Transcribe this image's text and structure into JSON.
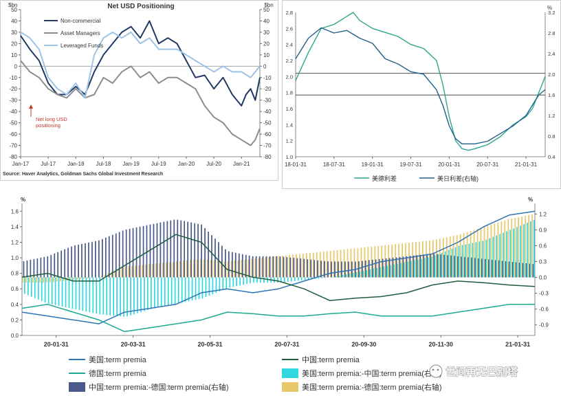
{
  "chart_data": [
    {
      "type": "line",
      "title": "Net USD Positioning",
      "left_unit": "$bn",
      "right_unit": "$bn",
      "ylim": [
        -80,
        50
      ],
      "y_ticks": [
        50,
        40,
        30,
        20,
        10,
        0,
        -10,
        -20,
        -30,
        -40,
        -50,
        -60,
        -70,
        -80
      ],
      "x_ticks": [
        "Jan-17",
        "Jul-17",
        "Jan-18",
        "Jul-18",
        "Jan-19",
        "Jul-19",
        "Jan-20",
        "Jul-20",
        "Jan-21"
      ],
      "xlim": [
        0,
        52
      ],
      "x_tick_positions": [
        0,
        6,
        12,
        18,
        24,
        30,
        36,
        42,
        48
      ],
      "annotation": "Net long USD positioning",
      "source": "Source: Haver Analytics, Goldman Sachs Global Investment Research",
      "grid": false,
      "legend_position": "top-left",
      "series": [
        {
          "name": "Non-commercial",
          "color": "#1f3864",
          "width": 2,
          "x": [
            0,
            2,
            4,
            6,
            8,
            10,
            12,
            14,
            16,
            18,
            20,
            22,
            24,
            26,
            28,
            30,
            32,
            34,
            36,
            38,
            40,
            42,
            44,
            46,
            47,
            48,
            49,
            50,
            51,
            52
          ],
          "values": [
            27,
            15,
            5,
            -15,
            -25,
            -25,
            -18,
            -25,
            -5,
            10,
            20,
            30,
            35,
            25,
            40,
            20,
            25,
            20,
            5,
            -10,
            -8,
            -20,
            -10,
            -25,
            -30,
            -35,
            -25,
            -20,
            -30,
            -10
          ]
        },
        {
          "name": "Asset Managers",
          "color": "#8c8c8c",
          "width": 2,
          "x": [
            0,
            2,
            4,
            6,
            8,
            10,
            12,
            14,
            16,
            18,
            20,
            22,
            24,
            26,
            28,
            30,
            32,
            34,
            36,
            38,
            40,
            42,
            44,
            46,
            48,
            50,
            51,
            52
          ],
          "values": [
            5,
            -5,
            -10,
            -20,
            -25,
            -28,
            -20,
            -28,
            -25,
            -10,
            -15,
            -5,
            0,
            -10,
            -5,
            -15,
            -10,
            -10,
            -15,
            -20,
            -35,
            -45,
            -50,
            -60,
            -65,
            -70,
            -65,
            -55
          ]
        },
        {
          "name": "Leveraged Funds",
          "color": "#9dc3e6",
          "width": 2,
          "x": [
            0,
            2,
            4,
            6,
            8,
            10,
            12,
            14,
            16,
            18,
            20,
            22,
            24,
            26,
            28,
            30,
            32,
            34,
            36,
            38,
            40,
            42,
            44,
            46,
            48,
            50,
            52
          ],
          "values": [
            30,
            25,
            15,
            -10,
            -20,
            -25,
            -15,
            -28,
            10,
            25,
            30,
            25,
            30,
            20,
            25,
            15,
            15,
            15,
            10,
            5,
            0,
            -5,
            0,
            -5,
            -5,
            -10,
            0
          ]
        }
      ]
    },
    {
      "type": "line",
      "right_unit": "%",
      "ylim_left": [
        1.0,
        2.8
      ],
      "ylim_right": [
        0.4,
        3.2
      ],
      "y_ticks_left": [
        "2.8",
        "2.6",
        "2.4",
        "2.2",
        "2.0",
        "1.8",
        "1.6",
        "1.4",
        "1.2",
        "1.0"
      ],
      "y_ticks_right": [
        "3.2",
        "2.8",
        "2.4",
        "2.0",
        "1.6",
        "1.2",
        "0.8",
        "0.4"
      ],
      "x_ticks": [
        "18-01-31",
        "18-07-31",
        "19-01-31",
        "19-07-31",
        "20-01-31",
        "20-07-31",
        "21-01-31"
      ],
      "xlim": [
        0,
        39
      ],
      "x_tick_positions": [
        0,
        6,
        12,
        18,
        24,
        30,
        36
      ],
      "hlines_left": [
        2.04,
        1.77
      ],
      "series": [
        {
          "name": "美德利差",
          "color": "#2ca58d",
          "axis": "left",
          "x": [
            0,
            2,
            4,
            6,
            8,
            9,
            10,
            12,
            14,
            16,
            18,
            20,
            22,
            23,
            24,
            25,
            26,
            27,
            28,
            30,
            32,
            34,
            36,
            37,
            38,
            39
          ],
          "values": [
            1.95,
            2.3,
            2.6,
            2.65,
            2.75,
            2.8,
            2.7,
            2.6,
            2.55,
            2.5,
            2.4,
            2.35,
            2.2,
            1.9,
            1.5,
            1.2,
            1.1,
            1.08,
            1.1,
            1.15,
            1.25,
            1.4,
            1.5,
            1.6,
            1.8,
            2.0
          ]
        },
        {
          "name": "美日利差(右轴)",
          "color": "#1f5f8b",
          "axis": "right",
          "x": [
            0,
            2,
            4,
            6,
            8,
            10,
            12,
            14,
            16,
            18,
            20,
            22,
            23,
            24,
            25,
            26,
            28,
            30,
            32,
            34,
            36,
            37,
            38,
            39
          ],
          "values": [
            2.3,
            2.7,
            2.9,
            2.8,
            2.85,
            2.7,
            2.6,
            2.3,
            2.2,
            2.05,
            2.0,
            1.7,
            1.4,
            1.0,
            0.75,
            0.65,
            0.65,
            0.7,
            0.85,
            1.0,
            1.2,
            1.4,
            1.6,
            1.7
          ]
        }
      ]
    },
    {
      "type": "bar",
      "left_unit": "%",
      "right_unit": "%",
      "ylim_left": [
        0.0,
        1.7
      ],
      "ylim_right": [
        -1.1,
        1.4
      ],
      "y_ticks_left": [
        "1.6",
        "1.4",
        "1.2",
        "1.0",
        "0.8",
        "0.6",
        "0.4",
        "0.2",
        "0.0"
      ],
      "y_ticks_right": [
        "1.2",
        "0.9",
        "0.6",
        "0.3",
        "0.0",
        "-0.3",
        "-0.6",
        "-0.9"
      ],
      "x_ticks": [
        "20-01-31",
        "20-03-31",
        "20-05-31",
        "20-07-31",
        "20-09-30",
        "20-11-30",
        "21-01-31"
      ],
      "xlim": [
        0,
        60
      ],
      "x_tick_positions": [
        4,
        13,
        22,
        31,
        40,
        49,
        58
      ],
      "watermark": "世间再无巴别塔",
      "series": [
        {
          "name": "美国:term premia",
          "color": "#2e75b6",
          "axis": "left",
          "kind": "line",
          "x": [
            0,
            3,
            6,
            9,
            12,
            15,
            18,
            21,
            24,
            27,
            30,
            33,
            36,
            39,
            42,
            45,
            48,
            51,
            54,
            57,
            60
          ],
          "values": [
            0.3,
            0.25,
            0.2,
            0.15,
            0.3,
            0.35,
            0.4,
            0.55,
            0.6,
            0.55,
            0.6,
            0.7,
            0.8,
            0.85,
            0.95,
            1.0,
            1.05,
            1.2,
            1.4,
            1.55,
            1.6
          ]
        },
        {
          "name": "中国:term premia",
          "color": "#1e5c3a",
          "axis": "left",
          "kind": "line",
          "x": [
            0,
            3,
            6,
            9,
            12,
            15,
            18,
            21,
            24,
            27,
            30,
            33,
            36,
            39,
            42,
            45,
            48,
            51,
            54,
            57,
            60
          ],
          "values": [
            0.75,
            0.8,
            0.7,
            0.7,
            0.9,
            1.1,
            1.3,
            1.2,
            0.85,
            0.75,
            0.7,
            0.6,
            0.45,
            0.48,
            0.5,
            0.55,
            0.65,
            0.7,
            0.68,
            0.65,
            0.63
          ]
        },
        {
          "name": "德国:term premia",
          "color": "#1aaa8f",
          "axis": "left",
          "kind": "line",
          "x": [
            0,
            3,
            6,
            9,
            12,
            15,
            18,
            21,
            24,
            27,
            30,
            33,
            36,
            39,
            42,
            45,
            48,
            51,
            54,
            57,
            60
          ],
          "values": [
            0.35,
            0.4,
            0.3,
            0.2,
            0.05,
            0.1,
            0.15,
            0.2,
            0.3,
            0.28,
            0.25,
            0.25,
            0.28,
            0.3,
            0.25,
            0.25,
            0.25,
            0.3,
            0.35,
            0.4,
            0.4
          ]
        },
        {
          "name": "美国:term premia:-中国:term premia(右轴)",
          "color": "#33d7e0",
          "axis": "right",
          "kind": "bar",
          "x": [
            0,
            3,
            6,
            9,
            12,
            15,
            18,
            21,
            24,
            27,
            30,
            33,
            36,
            39,
            42,
            45,
            48,
            51,
            54,
            57,
            60
          ],
          "values": [
            -0.3,
            -0.5,
            -0.6,
            -0.7,
            -0.75,
            -0.6,
            -0.5,
            -0.4,
            -0.2,
            -0.1,
            -0.1,
            -0.05,
            0.0,
            0.1,
            0.2,
            0.3,
            0.4,
            0.6,
            0.7,
            0.9,
            1.1
          ]
        },
        {
          "name": "中国:term premia:-德国:term premia(右轴)",
          "color": "#4a5a8c",
          "axis": "right",
          "kind": "bar",
          "x": [
            0,
            3,
            6,
            9,
            12,
            15,
            18,
            21,
            24,
            27,
            30,
            33,
            36,
            39,
            42,
            45,
            48,
            51,
            54,
            57,
            60
          ],
          "values": [
            0.3,
            0.4,
            0.6,
            0.7,
            0.9,
            1.0,
            1.1,
            1.0,
            0.5,
            0.4,
            0.4,
            0.35,
            0.3,
            0.3,
            0.35,
            0.4,
            0.45,
            0.4,
            0.35,
            0.3,
            0.25
          ]
        },
        {
          "name": "美国:term premia:-德国:term premia(右轴)",
          "color": "#e8c86a",
          "axis": "right",
          "kind": "bar",
          "x": [
            0,
            3,
            6,
            9,
            12,
            15,
            18,
            21,
            24,
            27,
            30,
            33,
            36,
            39,
            42,
            45,
            48,
            51,
            54,
            57,
            60
          ],
          "values": [
            -0.1,
            -0.1,
            -0.05,
            0.0,
            0.2,
            0.25,
            0.3,
            0.35,
            0.3,
            0.35,
            0.4,
            0.45,
            0.5,
            0.55,
            0.6,
            0.65,
            0.7,
            0.8,
            0.95,
            1.1,
            1.2
          ]
        }
      ]
    }
  ],
  "colors": {
    "grid": "#999999",
    "frame": "#cccccc",
    "axis_text": "#333333",
    "annotation": "#c0392b"
  }
}
